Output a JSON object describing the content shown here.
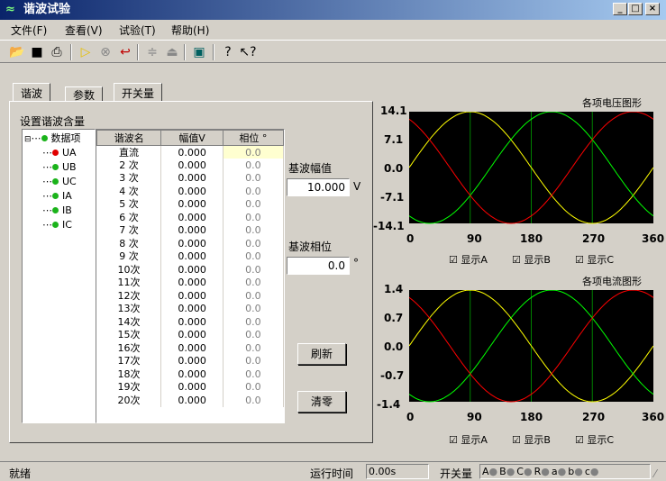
{
  "window": {
    "title": "谐波试验",
    "min": "_",
    "max": "□",
    "close": "×"
  },
  "menu": [
    "文件(F)",
    "查看(V)",
    "试验(T)",
    "帮助(H)"
  ],
  "toolbar": {
    "icons": [
      "open-icon",
      "save-icon",
      "print-icon",
      "play-icon",
      "stop-icon",
      "return-icon",
      "minus-icon",
      "eject-icon",
      "screen-icon",
      "help-icon",
      "context-help-icon"
    ]
  },
  "tabs": [
    "谐波",
    "参数",
    "开关量"
  ],
  "section_title": "设置谐波含量",
  "tree": {
    "root": "数据项",
    "items": [
      "UA",
      "UB",
      "UC",
      "IA",
      "IB",
      "IC"
    ]
  },
  "table": {
    "headers": [
      "谐波名",
      "幅值V",
      "相位 °"
    ],
    "rows": [
      [
        "直流",
        "0.000",
        "0.0"
      ],
      [
        "2 次",
        "0.000",
        "0.0"
      ],
      [
        "3 次",
        "0.000",
        "0.0"
      ],
      [
        "4 次",
        "0.000",
        "0.0"
      ],
      [
        "5 次",
        "0.000",
        "0.0"
      ],
      [
        "6 次",
        "0.000",
        "0.0"
      ],
      [
        "7 次",
        "0.000",
        "0.0"
      ],
      [
        "8 次",
        "0.000",
        "0.0"
      ],
      [
        "9 次",
        "0.000",
        "0.0"
      ],
      [
        "10次",
        "0.000",
        "0.0"
      ],
      [
        "11次",
        "0.000",
        "0.0"
      ],
      [
        "12次",
        "0.000",
        "0.0"
      ],
      [
        "13次",
        "0.000",
        "0.0"
      ],
      [
        "14次",
        "0.000",
        "0.0"
      ],
      [
        "15次",
        "0.000",
        "0.0"
      ],
      [
        "16次",
        "0.000",
        "0.0"
      ],
      [
        "17次",
        "0.000",
        "0.0"
      ],
      [
        "18次",
        "0.000",
        "0.0"
      ],
      [
        "19次",
        "0.000",
        "0.0"
      ],
      [
        "20次",
        "0.000",
        "0.0"
      ]
    ]
  },
  "base_amp": {
    "label": "基波幅值",
    "value": "10.000",
    "unit": "V"
  },
  "base_phase": {
    "label": "基波相位",
    "value": "0.0",
    "unit": "°"
  },
  "buttons": {
    "refresh": "刷新",
    "clear": "清零"
  },
  "voltage_chart": {
    "title": "各项电压图形",
    "yticks": [
      "14.1",
      "7.1",
      "0.0",
      "-7.1",
      "-14.1"
    ],
    "xticks": [
      "0",
      "90",
      "180",
      "270",
      "360"
    ],
    "checks": [
      "显示A",
      "显示B",
      "显示C"
    ]
  },
  "current_chart": {
    "title": "各项电流图形",
    "yticks": [
      "1.4",
      "0.7",
      "0.0",
      "-0.7",
      "-1.4"
    ],
    "xticks": [
      "0",
      "90",
      "180",
      "270",
      "360"
    ],
    "checks": [
      "显示A",
      "显示B",
      "显示C"
    ]
  },
  "colors": {
    "phaseA": "#ffff00",
    "phaseB": "#00ff00",
    "phaseC": "#ff0000",
    "plotbg": "#000000",
    "grid": "#008000"
  },
  "chart_data": [
    {
      "type": "line",
      "title": "各项电压图形",
      "x": [
        0,
        90,
        180,
        270,
        360
      ],
      "ylim": [
        -14.1,
        14.1
      ],
      "series": [
        {
          "name": "显示A",
          "phase_deg": 0,
          "amplitude": 14.1
        },
        {
          "name": "显示B",
          "phase_deg": -120,
          "amplitude": 14.1
        },
        {
          "name": "显示C",
          "phase_deg": 120,
          "amplitude": 14.1
        }
      ]
    },
    {
      "type": "line",
      "title": "各项电流图形",
      "x": [
        0,
        90,
        180,
        270,
        360
      ],
      "ylim": [
        -1.4,
        1.4
      ],
      "series": [
        {
          "name": "显示A",
          "phase_deg": 0,
          "amplitude": 1.4
        },
        {
          "name": "显示B",
          "phase_deg": -120,
          "amplitude": 1.4
        },
        {
          "name": "显示C",
          "phase_deg": 120,
          "amplitude": 1.4
        }
      ]
    }
  ],
  "status": {
    "ready": "就绪",
    "runtime_label": "运行时间",
    "runtime_value": "0.00s",
    "switch_label": "开关量",
    "switches": [
      "A",
      "B",
      "C",
      "R",
      "a",
      "b",
      "c"
    ]
  }
}
